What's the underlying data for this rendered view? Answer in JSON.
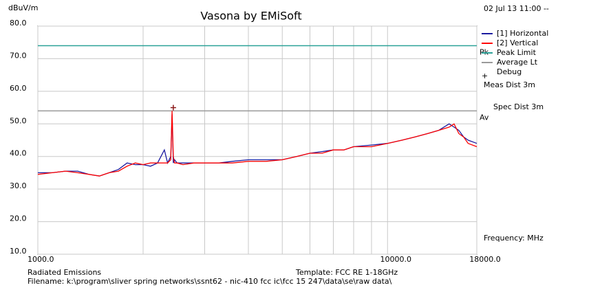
{
  "chart_data": {
    "type": "line",
    "title": "Vasona by EMiSoft",
    "timestamp": "02 Jul 13 11:00 --",
    "y_label": "dBuV/m",
    "x_label": "Frequency: MHz",
    "annotations": [
      "Meas Dist 3m",
      "Spec Dist 3m"
    ],
    "footer": [
      "Radiated Emissions",
      "Template: FCC RE 1-18GHz",
      "Filename: k:\\program\\sliver spring networks\\ssnt62 - nic-410 fcc ic\\fcc 15 247\\data\\se\\raw data\\"
    ],
    "x_log": true,
    "grid": true,
    "xlim": [
      1000,
      18000
    ],
    "ylim": [
      10,
      80
    ],
    "xticks": [
      {
        "value": 1000,
        "label": "1000.0"
      },
      {
        "value": 10000,
        "label": "10000.0"
      },
      {
        "value": 18000,
        "label": "18000.0"
      }
    ],
    "xminor": [
      2000,
      3000,
      4000,
      5000,
      6000,
      7000,
      8000,
      9000
    ],
    "yticks": [
      {
        "value": 10,
        "label": "10.0"
      },
      {
        "value": 20,
        "label": "20.0"
      },
      {
        "value": 30,
        "label": "30.0"
      },
      {
        "value": 40,
        "label": "40.0"
      },
      {
        "value": 50,
        "label": "50.0"
      },
      {
        "value": 60,
        "label": "60.0"
      },
      {
        "value": 70,
        "label": "70.0"
      },
      {
        "value": 80,
        "label": "80.0"
      }
    ],
    "x": [
      1000,
      1100,
      1200,
      1300,
      1400,
      1500,
      1600,
      1700,
      1800,
      1900,
      2000,
      2100,
      2200,
      2300,
      2350,
      2400,
      2420,
      2440,
      2460,
      2500,
      2600,
      2800,
      3000,
      3300,
      3600,
      4000,
      4500,
      5000,
      5500,
      6000,
      6500,
      7000,
      7500,
      8000,
      9000,
      10000,
      11000,
      12000,
      13000,
      14000,
      15000,
      15500,
      16000,
      16500,
      17000,
      18000
    ],
    "series": [
      {
        "name": "[1] Horizontal",
        "color": "#1a1aa0",
        "values": [
          35,
          35,
          35.5,
          35.5,
          34.5,
          34,
          35,
          36,
          38,
          37.5,
          37.5,
          37,
          38,
          42,
          38,
          40,
          53,
          38,
          39,
          38,
          38,
          38,
          38,
          38,
          38.5,
          39,
          39,
          39,
          40,
          41,
          41.5,
          42,
          42,
          43,
          43.5,
          44,
          45,
          46,
          47,
          48,
          50,
          49,
          48,
          46,
          45,
          44
        ]
      },
      {
        "name": "[2] Vertical",
        "color": "#ff0000",
        "values": [
          34.5,
          35,
          35.5,
          35,
          34.5,
          34,
          35,
          35.5,
          37,
          38,
          37.5,
          38,
          38,
          38,
          38,
          39,
          54,
          40,
          38,
          38,
          37.5,
          38,
          38,
          38,
          38,
          38.5,
          38.5,
          39,
          40,
          41,
          41,
          42,
          42,
          43,
          43,
          44,
          45,
          46,
          47,
          48,
          49,
          50,
          47,
          46,
          44,
          43
        ]
      }
    ],
    "limits": [
      {
        "name": "Peak Limit",
        "color": "#2aa198",
        "value": 74,
        "label": "Pk"
      },
      {
        "name": "Average Lt",
        "color": "#999999",
        "value": 54,
        "label": "Av"
      }
    ],
    "markers": [
      {
        "name": "Debug",
        "color": "#8b1a1a",
        "x": 2440,
        "y": 55
      }
    ]
  }
}
